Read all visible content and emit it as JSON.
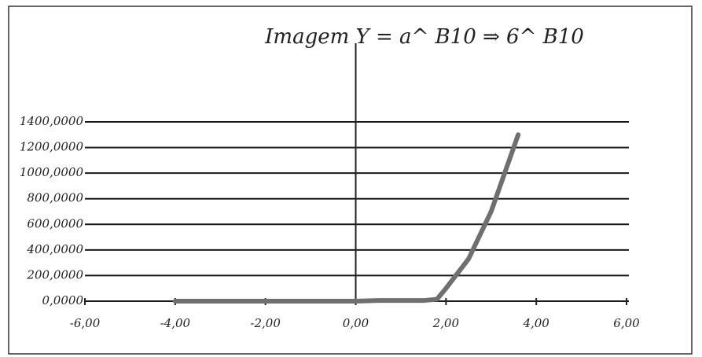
{
  "chart_data": {
    "type": "line",
    "title": "Imagem Y = a^ B10 ⇒ 6^ B10",
    "x": [
      -4,
      -3,
      -2,
      -1,
      0,
      0.5,
      1,
      1.5,
      1.8,
      2,
      2.5,
      3,
      3.3,
      3.6
    ],
    "values": [
      0,
      0,
      0,
      0,
      0,
      5,
      5,
      5,
      15,
      100,
      330,
      700,
      1000,
      1300
    ],
    "color": "#6f6f6f",
    "xlim": [
      -6,
      6
    ],
    "xticks": [
      {
        "value": -6,
        "label": "-6,00"
      },
      {
        "value": -4,
        "label": "-4,00"
      },
      {
        "value": -2,
        "label": "-2,00"
      },
      {
        "value": 0,
        "label": "0,00"
      },
      {
        "value": 2,
        "label": "2,00"
      },
      {
        "value": 4,
        "label": "4,00"
      },
      {
        "value": 6,
        "label": "6,00"
      }
    ],
    "ylim": [
      0,
      1400
    ],
    "yticks": [
      {
        "value": 0,
        "label": "0,0000"
      },
      {
        "value": 200,
        "label": "200,0000"
      },
      {
        "value": 400,
        "label": "400,0000"
      },
      {
        "value": 600,
        "label": "600,0000"
      },
      {
        "value": 800,
        "label": "800,0000"
      },
      {
        "value": 1000,
        "label": "1000,0000"
      },
      {
        "value": 1200,
        "label": "1200,0000"
      },
      {
        "value": 1400,
        "label": "1400,0000"
      }
    ],
    "grid": true
  }
}
